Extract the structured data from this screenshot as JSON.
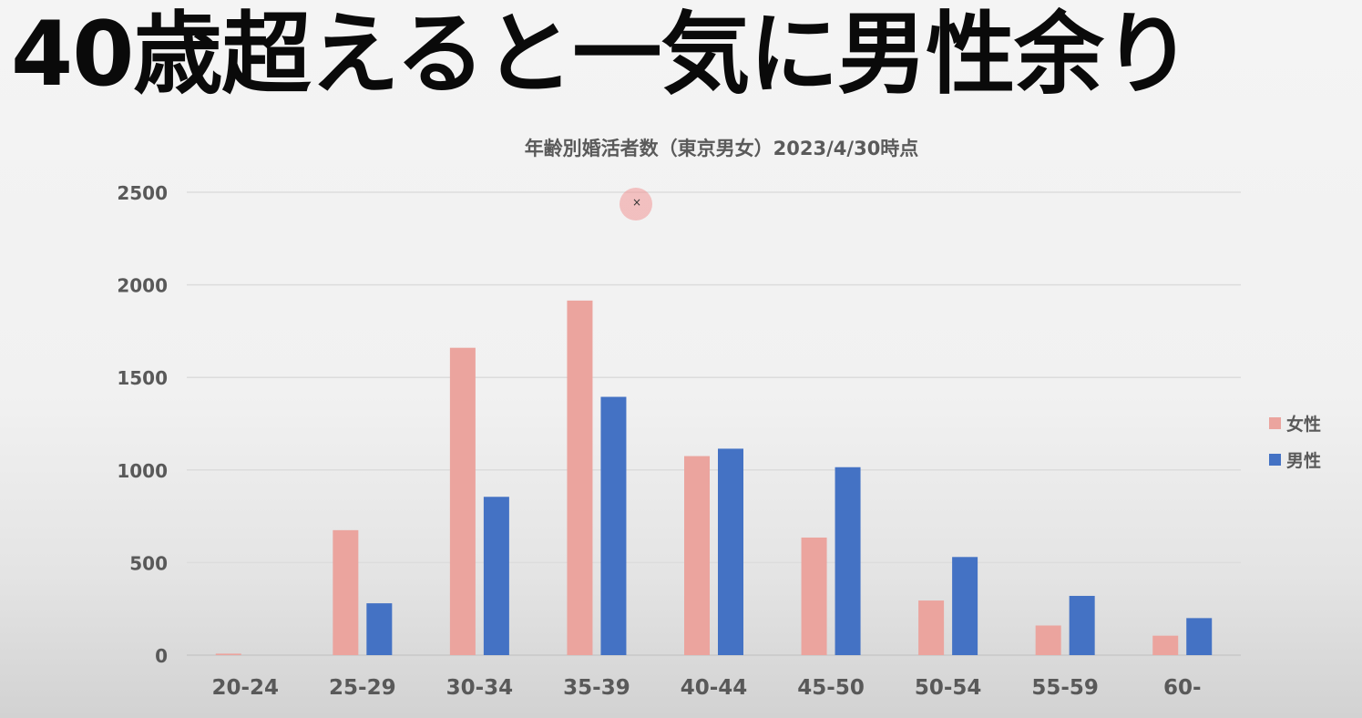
{
  "headline": "40歳超えると一気に男性余り",
  "chart_data": {
    "type": "bar",
    "title": "年齢別婚活者数（東京男女）2023/4/30時点",
    "xlabel": "",
    "ylabel": "",
    "ylim": [
      0,
      2500
    ],
    "yticks": [
      "0",
      "500",
      "1000",
      "1500",
      "2000",
      "2500"
    ],
    "grid": true,
    "legend_position": "right",
    "categories": [
      "20-24",
      "25-29",
      "30-34",
      "35-39",
      "40-44",
      "45-50",
      "50-54",
      "55-59",
      "60-"
    ],
    "series": [
      {
        "name": "女性",
        "color": "#eba49e",
        "values": [
          8,
          675,
          1660,
          1915,
          1075,
          635,
          295,
          160,
          105
        ]
      },
      {
        "name": "男性",
        "color": "#4472c4",
        "values": [
          0,
          280,
          855,
          1395,
          1115,
          1015,
          530,
          320,
          200
        ]
      }
    ]
  }
}
